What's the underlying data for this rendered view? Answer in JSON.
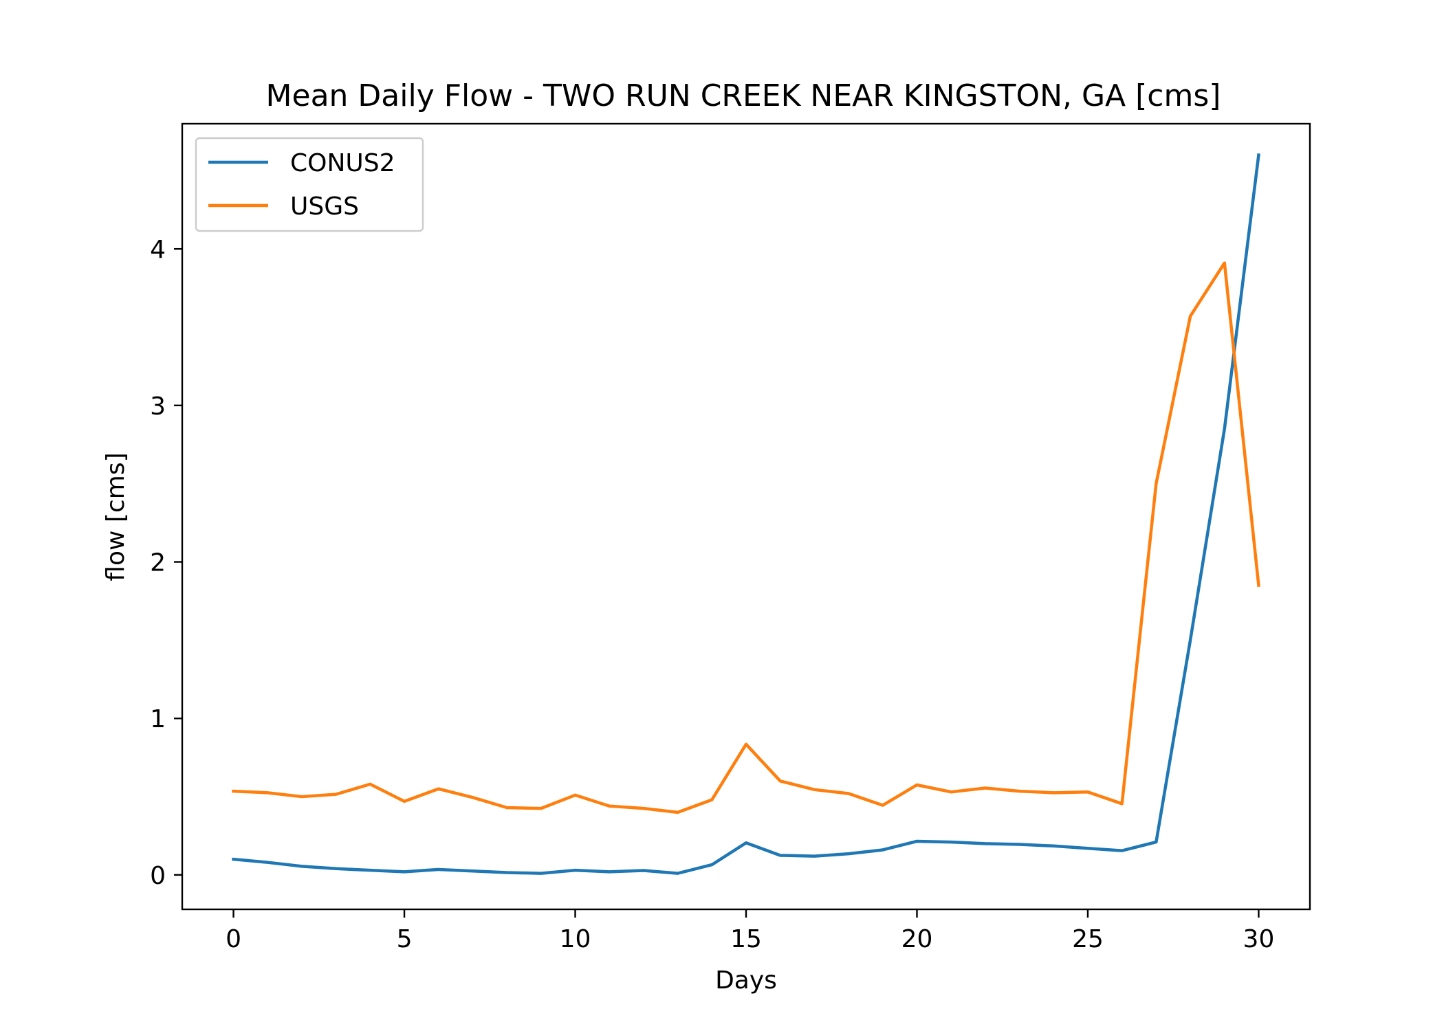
{
  "chart_data": {
    "type": "line",
    "title": "Mean Daily Flow - TWO RUN CREEK NEAR KINGSTON, GA [cms]",
    "xlabel": "Days",
    "ylabel": "flow [cms]",
    "xlim": [
      -1.5,
      31.5
    ],
    "ylim": [
      -0.22,
      4.8
    ],
    "xticks": [
      0,
      5,
      10,
      15,
      20,
      25,
      30
    ],
    "yticks": [
      0,
      1,
      2,
      3,
      4
    ],
    "grid": false,
    "legend_position": "upper-left",
    "x": [
      0,
      1,
      2,
      3,
      4,
      5,
      6,
      7,
      8,
      9,
      10,
      11,
      12,
      13,
      14,
      15,
      16,
      17,
      18,
      19,
      20,
      21,
      22,
      23,
      24,
      25,
      26,
      27,
      28,
      29,
      30
    ],
    "series": [
      {
        "name": "CONUS2",
        "color": "#1f77b4",
        "values": [
          0.1,
          0.08,
          0.055,
          0.04,
          0.03,
          0.02,
          0.035,
          0.025,
          0.015,
          0.01,
          0.03,
          0.02,
          0.028,
          0.01,
          0.065,
          0.205,
          0.125,
          0.12,
          0.135,
          0.16,
          0.215,
          0.21,
          0.2,
          0.195,
          0.185,
          0.17,
          0.155,
          0.21,
          1.5,
          2.85,
          4.6
        ]
      },
      {
        "name": "USGS",
        "color": "#ff7f0e",
        "values": [
          0.535,
          0.525,
          0.5,
          0.515,
          0.58,
          0.47,
          0.55,
          0.495,
          0.43,
          0.425,
          0.51,
          0.44,
          0.425,
          0.4,
          0.48,
          0.835,
          0.6,
          0.545,
          0.52,
          0.445,
          0.575,
          0.53,
          0.555,
          0.535,
          0.525,
          0.53,
          0.455,
          2.5,
          3.57,
          3.91,
          1.85
        ]
      }
    ]
  }
}
